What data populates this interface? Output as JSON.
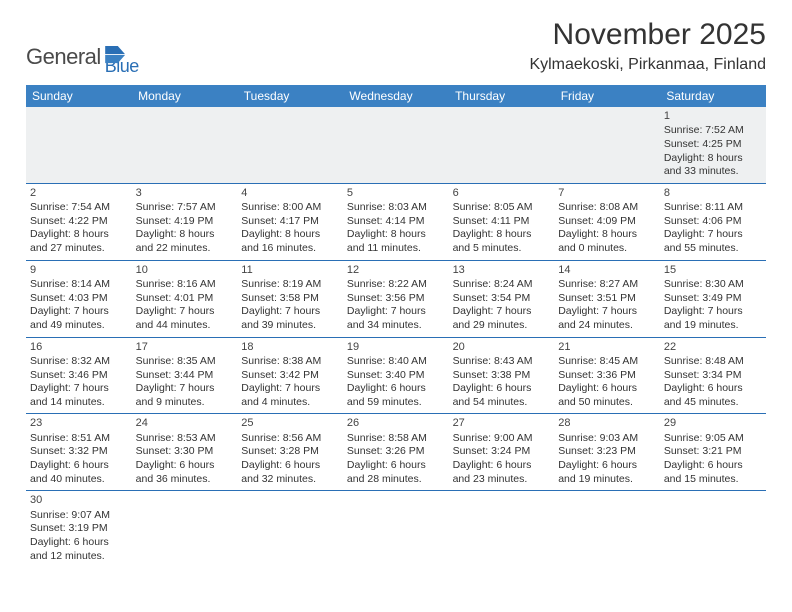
{
  "logo": {
    "part1": "General",
    "part2": "Blue"
  },
  "title": "November 2025",
  "subtitle": "Kylmaekoski, Pirkanmaa, Finland",
  "colors": {
    "header_bg": "#3b81c3",
    "header_text": "#ffffff",
    "row_divider": "#2a6fb5",
    "muted_bg": "#eef0f1",
    "logo_accent": "#2a6fb5",
    "text": "#333333"
  },
  "weekdays": [
    "Sunday",
    "Monday",
    "Tuesday",
    "Wednesday",
    "Thursday",
    "Friday",
    "Saturday"
  ],
  "weeks": [
    [
      null,
      null,
      null,
      null,
      null,
      null,
      {
        "d": "1",
        "sr": "Sunrise: 7:52 AM",
        "ss": "Sunset: 4:25 PM",
        "dl1": "Daylight: 8 hours",
        "dl2": "and 33 minutes."
      }
    ],
    [
      {
        "d": "2",
        "sr": "Sunrise: 7:54 AM",
        "ss": "Sunset: 4:22 PM",
        "dl1": "Daylight: 8 hours",
        "dl2": "and 27 minutes."
      },
      {
        "d": "3",
        "sr": "Sunrise: 7:57 AM",
        "ss": "Sunset: 4:19 PM",
        "dl1": "Daylight: 8 hours",
        "dl2": "and 22 minutes."
      },
      {
        "d": "4",
        "sr": "Sunrise: 8:00 AM",
        "ss": "Sunset: 4:17 PM",
        "dl1": "Daylight: 8 hours",
        "dl2": "and 16 minutes."
      },
      {
        "d": "5",
        "sr": "Sunrise: 8:03 AM",
        "ss": "Sunset: 4:14 PM",
        "dl1": "Daylight: 8 hours",
        "dl2": "and 11 minutes."
      },
      {
        "d": "6",
        "sr": "Sunrise: 8:05 AM",
        "ss": "Sunset: 4:11 PM",
        "dl1": "Daylight: 8 hours",
        "dl2": "and 5 minutes."
      },
      {
        "d": "7",
        "sr": "Sunrise: 8:08 AM",
        "ss": "Sunset: 4:09 PM",
        "dl1": "Daylight: 8 hours",
        "dl2": "and 0 minutes."
      },
      {
        "d": "8",
        "sr": "Sunrise: 8:11 AM",
        "ss": "Sunset: 4:06 PM",
        "dl1": "Daylight: 7 hours",
        "dl2": "and 55 minutes."
      }
    ],
    [
      {
        "d": "9",
        "sr": "Sunrise: 8:14 AM",
        "ss": "Sunset: 4:03 PM",
        "dl1": "Daylight: 7 hours",
        "dl2": "and 49 minutes."
      },
      {
        "d": "10",
        "sr": "Sunrise: 8:16 AM",
        "ss": "Sunset: 4:01 PM",
        "dl1": "Daylight: 7 hours",
        "dl2": "and 44 minutes."
      },
      {
        "d": "11",
        "sr": "Sunrise: 8:19 AM",
        "ss": "Sunset: 3:58 PM",
        "dl1": "Daylight: 7 hours",
        "dl2": "and 39 minutes."
      },
      {
        "d": "12",
        "sr": "Sunrise: 8:22 AM",
        "ss": "Sunset: 3:56 PM",
        "dl1": "Daylight: 7 hours",
        "dl2": "and 34 minutes."
      },
      {
        "d": "13",
        "sr": "Sunrise: 8:24 AM",
        "ss": "Sunset: 3:54 PM",
        "dl1": "Daylight: 7 hours",
        "dl2": "and 29 minutes."
      },
      {
        "d": "14",
        "sr": "Sunrise: 8:27 AM",
        "ss": "Sunset: 3:51 PM",
        "dl1": "Daylight: 7 hours",
        "dl2": "and 24 minutes."
      },
      {
        "d": "15",
        "sr": "Sunrise: 8:30 AM",
        "ss": "Sunset: 3:49 PM",
        "dl1": "Daylight: 7 hours",
        "dl2": "and 19 minutes."
      }
    ],
    [
      {
        "d": "16",
        "sr": "Sunrise: 8:32 AM",
        "ss": "Sunset: 3:46 PM",
        "dl1": "Daylight: 7 hours",
        "dl2": "and 14 minutes."
      },
      {
        "d": "17",
        "sr": "Sunrise: 8:35 AM",
        "ss": "Sunset: 3:44 PM",
        "dl1": "Daylight: 7 hours",
        "dl2": "and 9 minutes."
      },
      {
        "d": "18",
        "sr": "Sunrise: 8:38 AM",
        "ss": "Sunset: 3:42 PM",
        "dl1": "Daylight: 7 hours",
        "dl2": "and 4 minutes."
      },
      {
        "d": "19",
        "sr": "Sunrise: 8:40 AM",
        "ss": "Sunset: 3:40 PM",
        "dl1": "Daylight: 6 hours",
        "dl2": "and 59 minutes."
      },
      {
        "d": "20",
        "sr": "Sunrise: 8:43 AM",
        "ss": "Sunset: 3:38 PM",
        "dl1": "Daylight: 6 hours",
        "dl2": "and 54 minutes."
      },
      {
        "d": "21",
        "sr": "Sunrise: 8:45 AM",
        "ss": "Sunset: 3:36 PM",
        "dl1": "Daylight: 6 hours",
        "dl2": "and 50 minutes."
      },
      {
        "d": "22",
        "sr": "Sunrise: 8:48 AM",
        "ss": "Sunset: 3:34 PM",
        "dl1": "Daylight: 6 hours",
        "dl2": "and 45 minutes."
      }
    ],
    [
      {
        "d": "23",
        "sr": "Sunrise: 8:51 AM",
        "ss": "Sunset: 3:32 PM",
        "dl1": "Daylight: 6 hours",
        "dl2": "and 40 minutes."
      },
      {
        "d": "24",
        "sr": "Sunrise: 8:53 AM",
        "ss": "Sunset: 3:30 PM",
        "dl1": "Daylight: 6 hours",
        "dl2": "and 36 minutes."
      },
      {
        "d": "25",
        "sr": "Sunrise: 8:56 AM",
        "ss": "Sunset: 3:28 PM",
        "dl1": "Daylight: 6 hours",
        "dl2": "and 32 minutes."
      },
      {
        "d": "26",
        "sr": "Sunrise: 8:58 AM",
        "ss": "Sunset: 3:26 PM",
        "dl1": "Daylight: 6 hours",
        "dl2": "and 28 minutes."
      },
      {
        "d": "27",
        "sr": "Sunrise: 9:00 AM",
        "ss": "Sunset: 3:24 PM",
        "dl1": "Daylight: 6 hours",
        "dl2": "and 23 minutes."
      },
      {
        "d": "28",
        "sr": "Sunrise: 9:03 AM",
        "ss": "Sunset: 3:23 PM",
        "dl1": "Daylight: 6 hours",
        "dl2": "and 19 minutes."
      },
      {
        "d": "29",
        "sr": "Sunrise: 9:05 AM",
        "ss": "Sunset: 3:21 PM",
        "dl1": "Daylight: 6 hours",
        "dl2": "and 15 minutes."
      }
    ],
    [
      {
        "d": "30",
        "sr": "Sunrise: 9:07 AM",
        "ss": "Sunset: 3:19 PM",
        "dl1": "Daylight: 6 hours",
        "dl2": "and 12 minutes."
      },
      null,
      null,
      null,
      null,
      null,
      null
    ]
  ]
}
